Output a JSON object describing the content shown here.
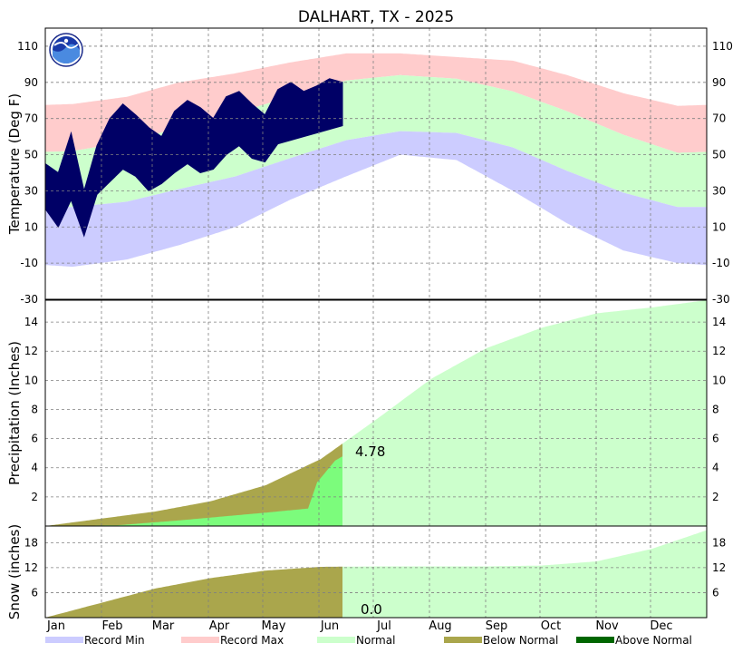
{
  "chart_data": {
    "type": "climate-summary",
    "title": "DALHART, TX - 2025",
    "x_axis": {
      "months": [
        "Jan",
        "Feb",
        "Mar",
        "Apr",
        "May",
        "Jun",
        "Jul",
        "Aug",
        "Sep",
        "Oct",
        "Nov",
        "Dec"
      ],
      "days_in_year": 365,
      "last_observed_day": 164
    },
    "legend": [
      {
        "label": "Record Min",
        "color": "#ccccff"
      },
      {
        "label": "Record Max",
        "color": "#ffcccc"
      },
      {
        "label": "Normal",
        "color": "#ccffcc"
      },
      {
        "label": "Below Normal",
        "color": "#aaa64c"
      },
      {
        "label": "Above Normal",
        "color": "#006600"
      }
    ],
    "colors": {
      "record_min": "#ccccff",
      "record_max": "#ffcccc",
      "normal": "#ccffcc",
      "observed_temp": "#000066",
      "observed_precip": "#7cfc7c",
      "below_normal": "#aaa64c",
      "above_normal": "#006600"
    },
    "temperature": {
      "ylabel": "Temperature (Deg F)",
      "ylim": [
        -30,
        120
      ],
      "ticks": [
        -30,
        -10,
        10,
        30,
        50,
        70,
        90,
        110
      ],
      "normal_high_monthly": [
        52,
        57,
        65,
        73,
        82,
        91,
        94,
        92,
        85,
        74,
        61,
        51
      ],
      "normal_low_monthly": [
        21,
        24,
        31,
        38,
        48,
        58,
        63,
        62,
        54,
        41,
        29,
        21
      ],
      "record_high_monthly": [
        78,
        82,
        90,
        95,
        101,
        106,
        106,
        104,
        102,
        94,
        84,
        77
      ],
      "record_low_monthly": [
        -12,
        -8,
        0,
        10,
        25,
        38,
        50,
        47,
        30,
        12,
        -3,
        -10
      ],
      "observed_high_weekly": [
        45,
        40,
        62,
        30,
        55,
        70,
        78,
        72,
        65,
        60,
        74,
        80,
        76,
        70,
        82,
        85,
        78,
        72,
        86,
        90,
        85,
        88,
        92,
        90
      ],
      "observed_low_weekly": [
        20,
        10,
        25,
        5,
        28,
        35,
        42,
        38,
        30,
        34,
        40,
        45,
        40,
        42,
        50,
        55,
        48,
        46,
        56,
        58,
        60,
        62,
        64,
        66
      ]
    },
    "precipitation": {
      "ylabel": "Precipitation (Inches)",
      "ylim": [
        0,
        15.5
      ],
      "ticks": [
        2,
        4,
        6,
        8,
        10,
        12,
        14
      ],
      "normal_cumulative": [
        0,
        0.5,
        1.0,
        1.7,
        2.8,
        4.6,
        7.3,
        10.1,
        12.2,
        13.6,
        14.6,
        15.0,
        15.5
      ],
      "observed_cumulative": [
        [
          0,
          0
        ],
        [
          40,
          0.05
        ],
        [
          75,
          0.4
        ],
        [
          120,
          0.9
        ],
        [
          145,
          1.2
        ],
        [
          150,
          3.0
        ],
        [
          160,
          4.5
        ],
        [
          164,
          4.78
        ]
      ],
      "ytd_label": "4.78"
    },
    "snow": {
      "ylabel": "Snow (inches)",
      "ylim": [
        0,
        22
      ],
      "ticks": [
        6,
        12,
        18
      ],
      "normal_cumulative": [
        0,
        3.5,
        7.0,
        9.5,
        11.3,
        12.2,
        12.3,
        12.3,
        12.3,
        12.5,
        13.5,
        16.5,
        21.0
      ],
      "observed_cumulative": 0,
      "ytd_label": "0.0"
    }
  }
}
